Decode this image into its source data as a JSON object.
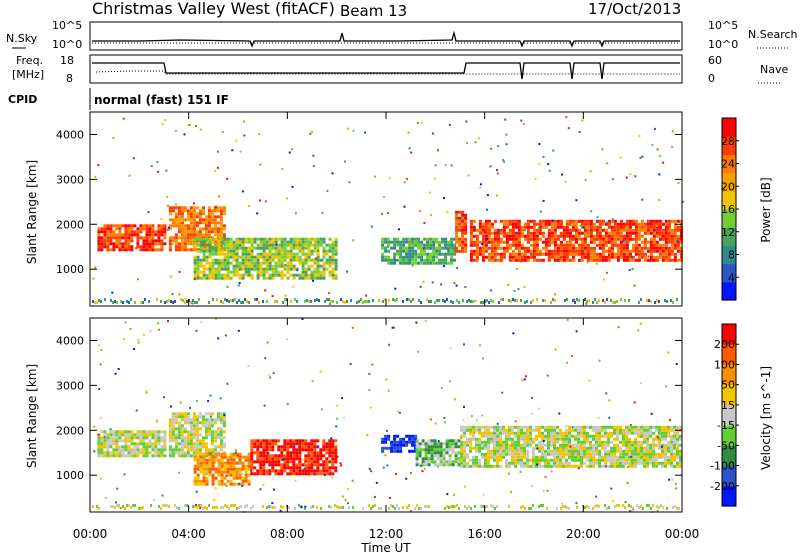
{
  "header": {
    "title": "Christmas Valley West (fitACF)",
    "beam": "Beam 13",
    "date": "17/Oct/2013"
  },
  "panels": {
    "nsky": {
      "label": "N.Sky",
      "ticks_left": [
        "10^5",
        "10^0"
      ],
      "ticks_right": [
        "10^5",
        "10^0"
      ],
      "right_label": "N.Search",
      "right_line": "dotted"
    },
    "freq": {
      "label_line1": "Freq.",
      "label_line2": "[MHz]",
      "ticks_left": [
        "18",
        "8"
      ],
      "ticks_right": [
        "60",
        "0"
      ],
      "right_label": "Nave",
      "right_line": "dotted"
    },
    "cpid": {
      "label": "CPID",
      "value": "normal (fast) 151 IF"
    }
  },
  "chart_data": [
    {
      "type": "heatmap",
      "name": "power",
      "ylabel": "Slant Range [km]",
      "ylim": [
        180,
        4500
      ],
      "yticks": [
        "1000",
        "2000",
        "3000",
        "4000"
      ],
      "yticks_values": [
        1000,
        2000,
        3000,
        4000
      ],
      "colorbar": {
        "label": "Power [dB]",
        "ticks": [
          "4",
          "8",
          "12",
          "16",
          "20",
          "24",
          "28"
        ],
        "colors": [
          "#0016ff",
          "#2a55c8",
          "#2f8c8c",
          "#4aa35a",
          "#6fcf35",
          "#f0c400",
          "#f5a000",
          "#ff7a00",
          "#ff3b00",
          "#ff0000"
        ]
      },
      "bands": [
        {
          "t0": 0.3,
          "t1": 3.0,
          "r0": 1400,
          "r1": 2000,
          "level": 8
        },
        {
          "t0": 3.2,
          "t1": 5.4,
          "r0": 1450,
          "r1": 2400,
          "level": 7
        },
        {
          "t0": 4.2,
          "t1": 10.0,
          "r0": 800,
          "r1": 1700,
          "level": 4
        },
        {
          "t0": 11.8,
          "t1": 14.8,
          "r0": 1100,
          "r1": 1700,
          "level": 3
        },
        {
          "t0": 14.8,
          "t1": 15.2,
          "r0": 1400,
          "r1": 2300,
          "level": 8
        },
        {
          "t0": 15.4,
          "t1": 24.0,
          "r0": 1200,
          "r1": 2100,
          "level": 8
        }
      ]
    },
    {
      "type": "heatmap",
      "name": "velocity",
      "xlabel": "Time UT",
      "ylabel": "Slant Range [km]",
      "ylim": [
        180,
        4500
      ],
      "yticks": [
        "1000",
        "2000",
        "3000",
        "4000"
      ],
      "yticks_values": [
        1000,
        2000,
        3000,
        4000
      ],
      "xticks": [
        "00:00",
        "04:00",
        "08:00",
        "12:00",
        "16:00",
        "20:00",
        "00:00"
      ],
      "xticks_values": [
        0,
        4,
        8,
        12,
        16,
        20,
        24
      ],
      "colorbar": {
        "label": "Velocity [m s^-1]",
        "ticks": [
          "200",
          "100",
          "50",
          "15",
          "-15",
          "-50",
          "-100",
          "-200"
        ],
        "colors": [
          "#0016ff",
          "#2a55c8",
          "#2f8c3c",
          "#5fcf35",
          "#c8c8c8",
          "#f5c400",
          "#f59000",
          "#ff5a00",
          "#ff0000"
        ]
      },
      "bands": [
        {
          "t0": 0.3,
          "t1": 3.0,
          "r0": 1400,
          "r1": 2000,
          "level": 4
        },
        {
          "t0": 3.2,
          "t1": 5.4,
          "r0": 1450,
          "r1": 2400,
          "level": 4
        },
        {
          "t0": 4.2,
          "t1": 6.5,
          "r0": 800,
          "r1": 1500,
          "level": 6
        },
        {
          "t0": 6.5,
          "t1": 10.0,
          "r0": 1000,
          "r1": 1800,
          "level": 8
        },
        {
          "t0": 11.8,
          "t1": 13.2,
          "r0": 1500,
          "r1": 1900,
          "level": 0
        },
        {
          "t0": 13.2,
          "t1": 15.0,
          "r0": 1200,
          "r1": 1800,
          "level": 3
        },
        {
          "t0": 15.0,
          "t1": 24.0,
          "r0": 1200,
          "r1": 2100,
          "level": 4
        }
      ]
    }
  ]
}
